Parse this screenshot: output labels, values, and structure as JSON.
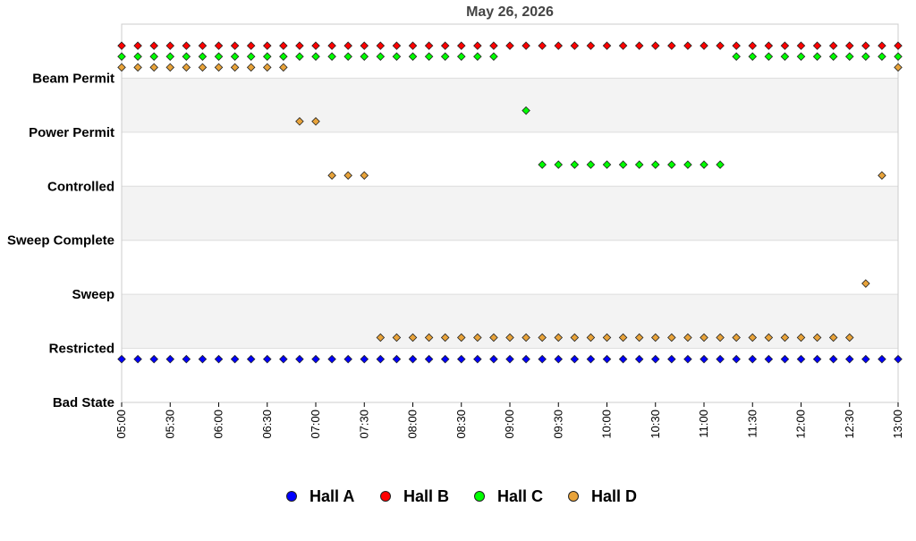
{
  "chart_data": {
    "type": "scatter",
    "title": "May 26, 2026",
    "xlabel": "",
    "ylabel": "",
    "x_range": [
      "05:00",
      "13:00"
    ],
    "x_tick_labels": [
      "05:00",
      "05:30",
      "06:00",
      "06:30",
      "07:00",
      "07:30",
      "08:00",
      "08:30",
      "09:00",
      "09:30",
      "10:00",
      "10:30",
      "11:00",
      "11:30",
      "12:00",
      "12:30",
      "13:00"
    ],
    "y_categories": [
      "Bad State",
      "Restricted",
      "Sweep",
      "Sweep Complete",
      "Controlled",
      "Power Permit",
      "Beam Permit"
    ],
    "grid": true,
    "legend_position": "bottom",
    "series": [
      {
        "name": "Hall A",
        "color": "#0000ff",
        "points": [
          {
            "x": "05:00",
            "y": "Restricted"
          },
          {
            "x": "13:00",
            "y": "Restricted"
          }
        ],
        "interval_minutes": 10,
        "y_offset_in_band": -0.2
      },
      {
        "name": "Hall B",
        "color": "#ff0000",
        "points": [
          {
            "x": "05:00",
            "y": "Beam Permit"
          },
          {
            "x": "13:00",
            "y": "Beam Permit"
          }
        ],
        "interval_minutes": 10,
        "y_offset_in_band": 0.6
      },
      {
        "name": "Hall C",
        "color": "#00ff00",
        "segments": [
          {
            "from": "05:00",
            "to": "08:50",
            "y": "Beam Permit",
            "offset": 0.4
          },
          {
            "from": "09:10",
            "to": "09:10",
            "y": "Power Permit",
            "offset": 0.4
          },
          {
            "from": "09:20",
            "to": "11:10",
            "y": "Controlled",
            "offset": 0.4
          },
          {
            "from": "11:20",
            "to": "13:00",
            "y": "Beam Permit",
            "offset": 0.4
          }
        ],
        "interval_minutes": 10
      },
      {
        "name": "Hall D",
        "color": "#e8a33a",
        "segments": [
          {
            "from": "05:00",
            "to": "06:40",
            "y": "Beam Permit",
            "offset": 0.2
          },
          {
            "from": "06:50",
            "to": "07:00",
            "y": "Power Permit",
            "offset": 0.2
          },
          {
            "from": "07:10",
            "to": "07:30",
            "y": "Controlled",
            "offset": 0.2
          },
          {
            "from": "07:40",
            "to": "12:30",
            "y": "Restricted",
            "offset": 0.2
          },
          {
            "from": "12:40",
            "to": "12:40",
            "y": "Sweep",
            "offset": 0.2
          },
          {
            "from": "12:50",
            "to": "12:50",
            "y": "Controlled",
            "offset": 0.2
          },
          {
            "from": "13:00",
            "to": "13:00",
            "y": "Beam Permit",
            "offset": 0.2
          }
        ],
        "interval_minutes": 10
      }
    ]
  }
}
